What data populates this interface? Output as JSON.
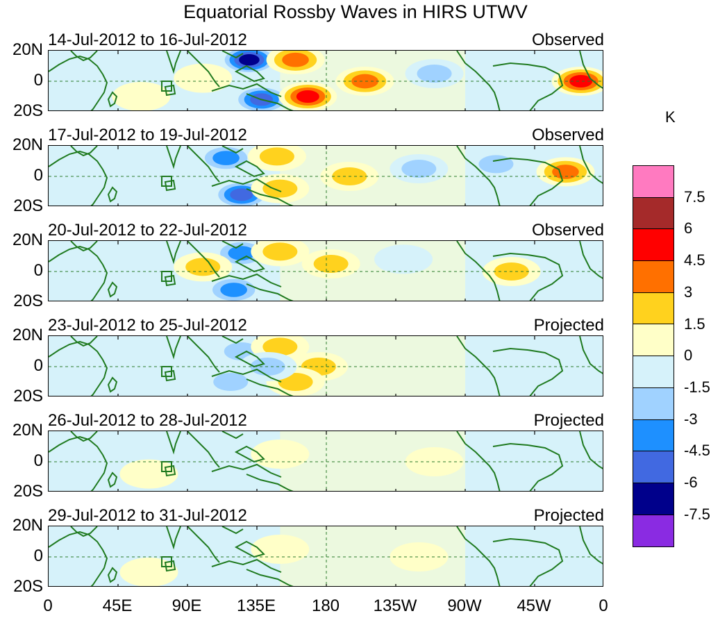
{
  "title": "Equatorial Rossby Waves in HIRS UTWV",
  "units": "K",
  "lat_labels": [
    "20N",
    "0",
    "20S"
  ],
  "lon_labels": [
    "0",
    "45E",
    "90E",
    "135E",
    "180",
    "135W",
    "90W",
    "45W",
    "0"
  ],
  "colorbar": {
    "levels": [
      "7.5",
      "6",
      "4.5",
      "3",
      "1.5",
      "0",
      "-1.5",
      "-3",
      "-4.5",
      "-6",
      "-7.5"
    ],
    "colors": [
      "#ff7ac0",
      "#a52a2a",
      "#ff0000",
      "#ff7000",
      "#ffd21e",
      "#ffffc8",
      "#d6f2fa",
      "#a0d2ff",
      "#1e90ff",
      "#4169e1",
      "#00008b",
      "#8a2be2"
    ]
  },
  "panels": [
    {
      "dates": "14-Jul-2012 to 16-Jul-2012",
      "status": "Observed"
    },
    {
      "dates": "17-Jul-2012 to 19-Jul-2012",
      "status": "Observed"
    },
    {
      "dates": "20-Jul-2012 to 22-Jul-2012",
      "status": "Observed"
    },
    {
      "dates": "23-Jul-2012 to 25-Jul-2012",
      "status": "Projected"
    },
    {
      "dates": "26-Jul-2012 to 28-Jul-2012",
      "status": "Projected"
    },
    {
      "dates": "29-Jul-2012 to 31-Jul-2012",
      "status": "Projected"
    }
  ],
  "anomalies": [
    [
      {
        "lon": 130,
        "lat": 14,
        "v": -7
      },
      {
        "lon": 138,
        "lat": -12,
        "v": -5.5
      },
      {
        "lon": 160,
        "lat": 14,
        "v": 4
      },
      {
        "lon": 168,
        "lat": -10,
        "v": 5
      },
      {
        "lon": 205,
        "lat": 0,
        "v": 3.5
      },
      {
        "lon": 345,
        "lat": 0,
        "v": 5
      },
      {
        "lon": 100,
        "lat": 2,
        "v": 1.5
      },
      {
        "lon": 250,
        "lat": 5,
        "v": -2
      },
      {
        "lon": 60,
        "lat": -10,
        "v": 1.5
      }
    ],
    [
      {
        "lon": 115,
        "lat": 12,
        "v": -4
      },
      {
        "lon": 125,
        "lat": -12,
        "v": -5
      },
      {
        "lon": 148,
        "lat": 13,
        "v": 3
      },
      {
        "lon": 150,
        "lat": -8,
        "v": 3
      },
      {
        "lon": 240,
        "lat": 5,
        "v": -2
      },
      {
        "lon": 335,
        "lat": 3,
        "v": 4
      },
      {
        "lon": 290,
        "lat": 8,
        "v": -2
      },
      {
        "lon": 195,
        "lat": 0,
        "v": 2
      }
    ],
    [
      {
        "lon": 125,
        "lat": 12,
        "v": -4
      },
      {
        "lon": 120,
        "lat": -12,
        "v": -4
      },
      {
        "lon": 100,
        "lat": 3,
        "v": 2
      },
      {
        "lon": 150,
        "lat": 13,
        "v": 2.5
      },
      {
        "lon": 183,
        "lat": 5,
        "v": 2.5
      },
      {
        "lon": 300,
        "lat": 0,
        "v": 2
      },
      {
        "lon": 230,
        "lat": 8,
        "v": -1.5
      }
    ],
    [
      {
        "lon": 125,
        "lat": 10,
        "v": -2.5
      },
      {
        "lon": 118,
        "lat": -10,
        "v": -2.5
      },
      {
        "lon": 150,
        "lat": 13,
        "v": 2
      },
      {
        "lon": 175,
        "lat": 0,
        "v": 2
      },
      {
        "lon": 160,
        "lat": -10,
        "v": 2
      },
      {
        "lon": 142,
        "lat": 0,
        "v": -1.8
      }
    ],
    [
      {
        "lon": 150,
        "lat": 5,
        "v": 1
      },
      {
        "lon": 250,
        "lat": 0,
        "v": 1
      },
      {
        "lon": 65,
        "lat": -8,
        "v": 1
      }
    ],
    [
      {
        "lon": 150,
        "lat": 5,
        "v": 0.8
      },
      {
        "lon": 240,
        "lat": 0,
        "v": 0.8
      },
      {
        "lon": 65,
        "lat": -10,
        "v": 0.8
      }
    ]
  ]
}
